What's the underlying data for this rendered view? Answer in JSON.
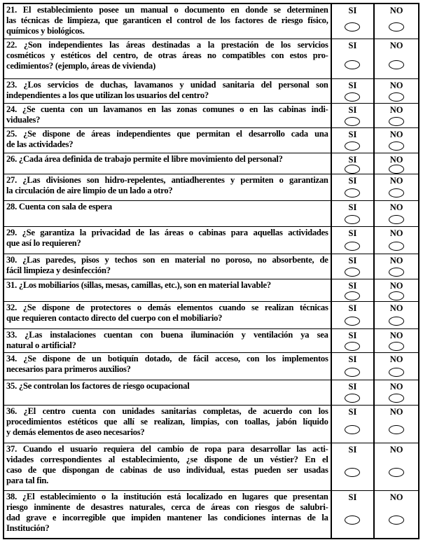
{
  "options": {
    "si": "SI",
    "no": "NO"
  },
  "questions": [
    {
      "lines": [
        "21. El establecimiento posee un manual o documento en donde se determinen",
        "las técnicas de limpieza, que garanticen el control de los factores de riesgo físico,",
        "químicos y biológicos."
      ]
    },
    {
      "lines": [
        "22. ¿Son independientes las áreas destinadas a la prestación de los servicios",
        "cosméticos y estéticos del centro, de otras áreas no compatibles con estos pro-",
        "cedimientos? (ejemplo, áreas de vivienda)"
      ]
    },
    {
      "lines": [
        "23. ¿Los servicios de duchas, lavamanos y unidad sanitaria del personal son",
        "independientes a los que utilizan los usuarios del centro?"
      ]
    },
    {
      "lines": [
        "24. ¿Se cuenta con un lavamanos en las zonas comunes o en las cabinas indi-",
        "viduales?"
      ]
    },
    {
      "lines": [
        "25. ¿Se dispone de áreas independientes que permitan el desarrollo cada una",
        "de las actividades?"
      ]
    },
    {
      "lines": [
        "26. ¿Cada área definida de trabajo permite el libre movimiento del personal?"
      ]
    },
    {
      "lines": [
        "27. ¿Las divisiones son hidro-repelentes, antiadherentes y permiten o garantizan",
        "la circulación de aire limpio de un lado a otro?"
      ]
    },
    {
      "lines": [
        "28. Cuenta con sala de espera"
      ]
    },
    {
      "lines": [
        "29. ¿Se garantiza la privacidad de las áreas o cabinas para aquellas actividades",
        "que así lo requieren?"
      ]
    },
    {
      "lines": [
        "30. ¿Las paredes, pisos y techos son en material no poroso, no absorbente, de",
        "fácil limpieza y desinfección?"
      ]
    },
    {
      "lines": [
        "31. ¿Los mobiliarios (sillas, mesas, camillas, etc.), son en material lavable?"
      ]
    },
    {
      "lines": [
        "32. ¿Se dispone de protectores o demás elementos cuando se realizan técnicas",
        "que requieren contacto directo del cuerpo con el mobiliario?"
      ]
    },
    {
      "lines": [
        "33. ¿Las instalaciones cuentan con buena iluminación y ventilación ya sea",
        "natural o artificial?"
      ]
    },
    {
      "lines": [
        "34. ¿Se dispone de un botiquín dotado, de fácil acceso, con los implementos",
        "necesarios para primeros auxilios?"
      ]
    },
    {
      "lines": [
        "35. ¿Se controlan los factores de riesgo ocupacional"
      ]
    },
    {
      "lines": [
        "36. ¿El centro cuenta con unidades sanitarias completas, de acuerdo con los",
        "procedimientos estéticos que allí se realizan, limpias, con toallas, jabón líquido",
        "y demás elementos de aseo necesarios?"
      ]
    },
    {
      "lines": [
        "37. Cuando el usuario requiera del cambio de ropa para desarrollar las acti-",
        "vidades correspondientes al establecimiento, ¿se dispone de un véstier? En el",
        "caso de que dispongan de cabinas de uso individual, estas pueden ser usadas",
        "para tal fin."
      ]
    },
    {
      "lines": [
        "38. ¿El establecimiento o la institución está localizado en lugares que presentan",
        "riesgo inminente de desastres naturales, cerca de áreas con riesgos de salubri-",
        "dad grave e incorregible que impiden mantener las condiciones internas de la",
        "Institución?"
      ]
    }
  ]
}
